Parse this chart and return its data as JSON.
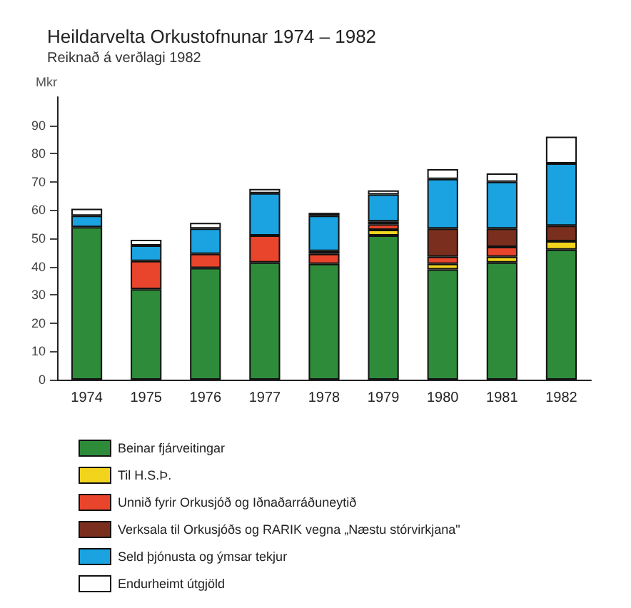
{
  "chart_data": {
    "type": "bar",
    "title": "Heildarvelta Orkustofnunar 1974 – 1982",
    "subtitle": "Reiknað á verðlagi 1982",
    "ylabel": "Mkr",
    "stacked": true,
    "categories": [
      "1974",
      "1975",
      "1976",
      "1977",
      "1978",
      "1979",
      "1980",
      "1981",
      "1982"
    ],
    "series": [
      {
        "name": "Beinar fjárveitingar",
        "color": "#2e8b3a",
        "values": [
          54,
          32,
          39.5,
          41.5,
          41,
          51,
          39,
          41.5,
          46
        ]
      },
      {
        "name": "Til H.S.Þ.",
        "color": "#f2d41c",
        "values": [
          null,
          null,
          null,
          null,
          null,
          2,
          2,
          2,
          3
        ]
      },
      {
        "name": "Unnið fyrir Orkusjóð og Iðnaðarráðuneytið",
        "color": "#e8452c",
        "values": [
          null,
          10,
          5,
          9.5,
          3.5,
          2,
          2.5,
          3.5,
          null
        ]
      },
      {
        "name": "Verksala til Orkusjóðs og RARIK vegna „Næstu stórvirkjana\"",
        "color": "#7a2e1e",
        "values": [
          null,
          null,
          null,
          null,
          1,
          1,
          10,
          6.5,
          5.5
        ]
      },
      {
        "name": "Seld þjónusta og ýmsar tekjur",
        "color": "#1aa3e0",
        "values": [
          4,
          5.5,
          9,
          15,
          12.5,
          9.5,
          17.5,
          16.5,
          22
        ]
      },
      {
        "name": "Endurheimt útgjöld",
        "color": "#ffffff",
        "values": [
          2.5,
          2,
          2,
          1.5,
          1,
          1.5,
          3.5,
          3,
          9.5
        ]
      }
    ],
    "ylim": [
      0,
      100
    ],
    "yticks": [
      0,
      10,
      20,
      30,
      40,
      50,
      60,
      70,
      80,
      90
    ],
    "grid": false,
    "legend": "bottom"
  }
}
